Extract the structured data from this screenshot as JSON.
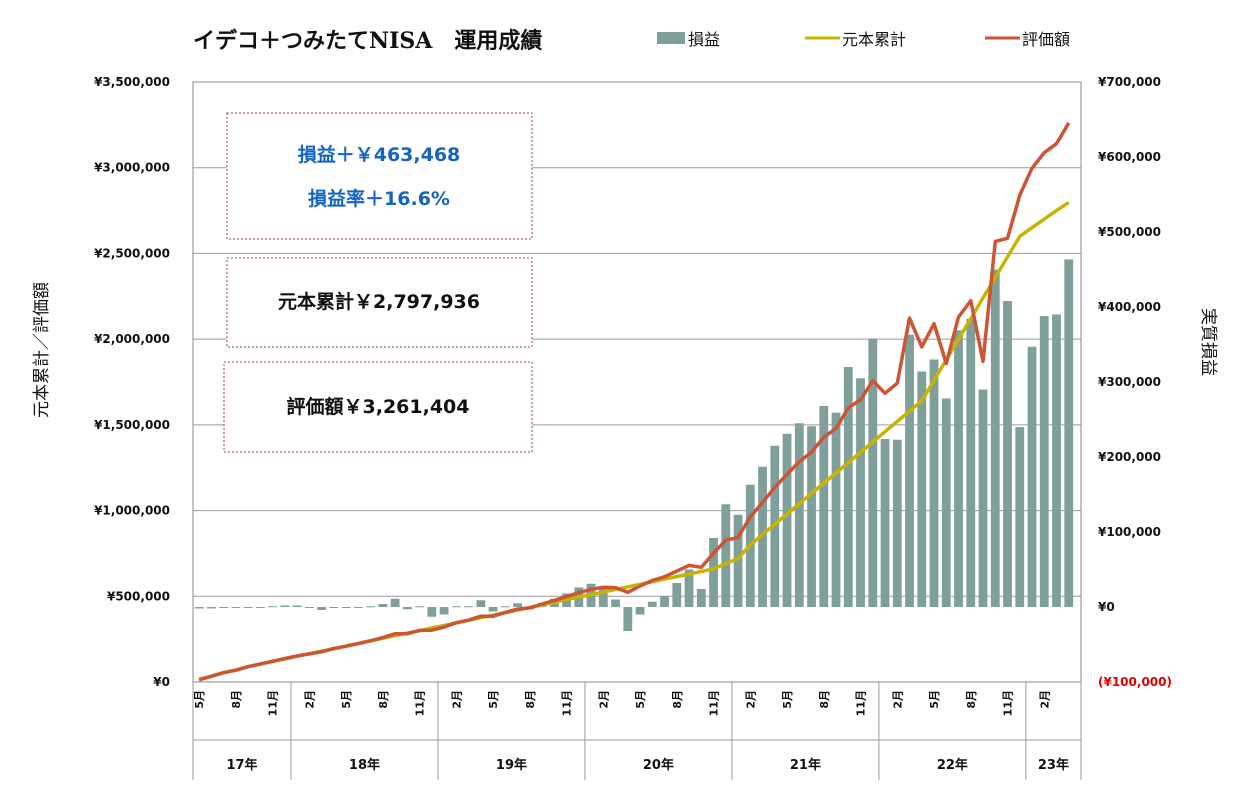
{
  "chart_data": {
    "type": "bar+line",
    "title": "イデコ＋つみたてNISA　運用成績",
    "legend": [
      "損益",
      "元本累計",
      "評価額"
    ],
    "legend_position": "top-right",
    "ylabel_left": "元本累計／評価額",
    "ylabel_right": "実質損益",
    "ylim_left": [
      0,
      3500000
    ],
    "ylim_right": [
      -100000,
      700000
    ],
    "yticks_left": [
      "¥3,500,000",
      "¥3,000,000",
      "¥2,500,000",
      "¥2,000,000",
      "¥1,500,000",
      "¥1,000,000",
      "¥500,000",
      "¥0"
    ],
    "yticks_right": [
      "¥700,000",
      "¥600,000",
      "¥500,000",
      "¥400,000",
      "¥300,000",
      "¥200,000",
      "¥100,000",
      "¥0",
      "(¥100,000)"
    ],
    "grid": true,
    "x_month_labels": [
      "5月",
      "8月",
      "11月",
      "2月",
      "5月",
      "8月",
      "11月",
      "2月",
      "5月",
      "8月",
      "11月",
      "2月",
      "5月",
      "8月",
      "11月",
      "2月",
      "5月",
      "8月",
      "11月",
      "2月",
      "5月",
      "8月",
      "11月",
      "2月"
    ],
    "x_year_labels": [
      "17年",
      "18年",
      "19年",
      "20年",
      "21年",
      "22年",
      "23年"
    ],
    "start_month": "2017-05",
    "series": [
      {
        "name": "損益",
        "type": "bar",
        "color": "#7f9f9b",
        "values": [
          -2000,
          -2000,
          -1000,
          -1000,
          -1000,
          0,
          1000,
          2000,
          2000,
          -1000,
          -4000,
          0,
          -1000,
          -1000,
          1000,
          4000,
          11000,
          -3000,
          1000,
          -13000,
          -10000,
          1000,
          1000,
          9000,
          -6000,
          1000,
          5000,
          -3000,
          5000,
          11000,
          18000,
          26000,
          31000,
          28000,
          10000,
          -32000,
          -10000,
          7000,
          14000,
          32000,
          50000,
          24000,
          92000,
          137000,
          123000,
          163000,
          187000,
          215000,
          231000,
          245000,
          241000,
          268000,
          259000,
          320000,
          305000,
          358000,
          224000,
          223000,
          363000,
          314000,
          330000,
          278000,
          369000,
          384000,
          290000,
          450000,
          408000,
          240000,
          347000,
          388000,
          390000,
          463468
        ]
      },
      {
        "name": "元本累計",
        "type": "line",
        "color": "#c8b400",
        "values": [
          15000,
          35000,
          55000,
          70000,
          90000,
          105000,
          120000,
          135000,
          150000,
          165000,
          180000,
          195000,
          210000,
          225000,
          240000,
          255000,
          270000,
          285000,
          300000,
          315000,
          330000,
          345000,
          360000,
          375000,
          390000,
          405000,
          420000,
          435000,
          450000,
          465000,
          480000,
          495000,
          510000,
          525000,
          540000,
          555000,
          570000,
          585000,
          600000,
          615000,
          630000,
          645000,
          660000,
          690000,
          720000,
          800000,
          860000,
          920000,
          980000,
          1040000,
          1100000,
          1160000,
          1220000,
          1280000,
          1340000,
          1400000,
          1460000,
          1520000,
          1580000,
          1640000,
          1760000,
          1880000,
          2000000,
          2120000,
          2240000,
          2360000,
          2480000,
          2600000,
          2650000,
          2700000,
          2750000,
          2797936
        ]
      },
      {
        "name": "評価額",
        "type": "line",
        "color": "#cc5533",
        "values": [
          13000,
          33000,
          54000,
          69000,
          89000,
          105000,
          121000,
          137000,
          152000,
          164000,
          176000,
          195000,
          209000,
          224000,
          241000,
          259000,
          281000,
          282000,
          301000,
          302000,
          320000,
          346000,
          361000,
          384000,
          384000,
          406000,
          425000,
          432000,
          455000,
          476000,
          498000,
          521000,
          541000,
          553000,
          550000,
          523000,
          560000,
          592000,
          614000,
          647000,
          680000,
          669000,
          752000,
          827000,
          843000,
          963000,
          1047000,
          1135000,
          1211000,
          1285000,
          1341000,
          1428000,
          1479000,
          1600000,
          1645000,
          1758000,
          1684000,
          1743000,
          2123000,
          1954000,
          2090000,
          1858000,
          2129000,
          2224000,
          1870000,
          2570000,
          2588000,
          2840000,
          2997000,
          3088000,
          3140000,
          3261404
        ]
      }
    ]
  },
  "annotations": {
    "profit_label": "損益＋￥463,468",
    "rate_label": "損益率＋16.6%",
    "principal_label": "元本累計￥2,797,936",
    "valuation_label": "評価額￥3,261,404"
  }
}
